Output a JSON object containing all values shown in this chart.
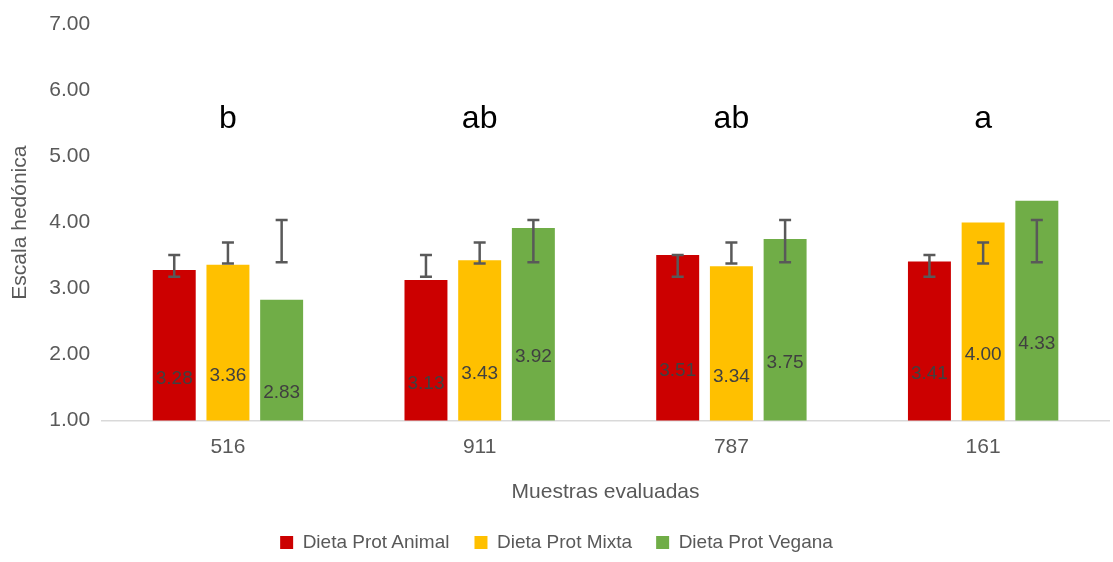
{
  "chart_data": {
    "type": "bar",
    "xlabel": "Muestras evaluadas",
    "ylabel": "Escala hedónica",
    "categories": [
      "516",
      "911",
      "787",
      "161"
    ],
    "series": [
      {
        "name": "Dieta Prot Animal",
        "color": "#cc0000",
        "values": [
          3.28,
          3.13,
          3.51,
          3.41
        ],
        "value_labels": [
          "3.28",
          "3.13",
          "3.51",
          "3.41"
        ],
        "errors": [
          [
            3.18,
            3.51
          ],
          [
            3.18,
            3.51
          ],
          [
            3.18,
            3.51
          ],
          [
            3.18,
            3.51
          ]
        ]
      },
      {
        "name": "Dieta Prot Mixta",
        "color": "#ffc000",
        "values": [
          3.36,
          3.43,
          3.34,
          4.0
        ],
        "value_labels": [
          "3.36",
          "3.43",
          "3.34",
          "4.00"
        ],
        "errors": [
          [
            3.38,
            3.7
          ],
          [
            3.38,
            3.7
          ],
          [
            3.38,
            3.7
          ],
          [
            3.38,
            3.7
          ]
        ]
      },
      {
        "name": "Dieta Prot Vegana",
        "color": "#70ad47",
        "values": [
          2.83,
          3.92,
          3.75,
          4.33
        ],
        "value_labels": [
          "2.83",
          "3.92",
          "3.75",
          "4.33"
        ],
        "errors": [
          [
            3.4,
            4.04
          ],
          [
            3.4,
            4.04
          ],
          [
            3.4,
            4.04
          ],
          [
            3.4,
            4.04
          ]
        ]
      }
    ],
    "ylim": [
      1,
      7
    ],
    "yticks": [
      {
        "value": 1,
        "label": "1.00"
      },
      {
        "value": 2,
        "label": "2.00"
      },
      {
        "value": 3,
        "label": "3.00"
      },
      {
        "value": 4,
        "label": "4.00"
      },
      {
        "value": 5,
        "label": "5.00"
      },
      {
        "value": 6,
        "label": "6.00"
      },
      {
        "value": 7,
        "label": "7.00"
      }
    ],
    "grid": false,
    "legend": "bottom",
    "annotations": [
      "b",
      "ab",
      "ab",
      "a"
    ]
  }
}
